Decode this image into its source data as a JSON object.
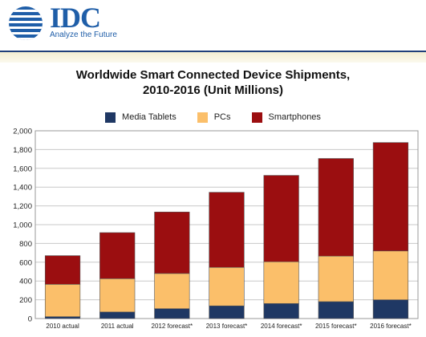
{
  "header": {
    "logo_text": "IDC",
    "tagline": "Analyze the Future"
  },
  "chart_data": {
    "type": "bar",
    "stacked": true,
    "title_line1": "Worldwide Smart Connected Device Shipments,",
    "title_line2": "2010-2016 (Unit Millions)",
    "categories": [
      "2010 actual",
      "2011 actual",
      "2012 forecast*",
      "2013 forecast*",
      "2014 forecast*",
      "2015 forecast*",
      "2016 forecast*"
    ],
    "series": [
      {
        "name": "Media Tablets",
        "color": "#1f3864",
        "values": [
          20,
          70,
          105,
          135,
          160,
          180,
          200
        ]
      },
      {
        "name": "PCs",
        "color": "#fbbf6a",
        "values": [
          345,
          355,
          375,
          410,
          445,
          485,
          520
        ]
      },
      {
        "name": "Smartphones",
        "color": "#9b0e10",
        "values": [
          305,
          490,
          655,
          800,
          920,
          1040,
          1155
        ]
      }
    ],
    "ylim": [
      0,
      2000
    ],
    "yticks": [
      0,
      200,
      400,
      600,
      800,
      1000,
      1200,
      1400,
      1600,
      1800,
      2000
    ],
    "ytick_labels": [
      "0",
      "200",
      "400",
      "600",
      "800",
      "1,000",
      "1,200",
      "1,400",
      "1,600",
      "1,800",
      "2,000"
    ],
    "grid": true,
    "legend_position": "top"
  }
}
